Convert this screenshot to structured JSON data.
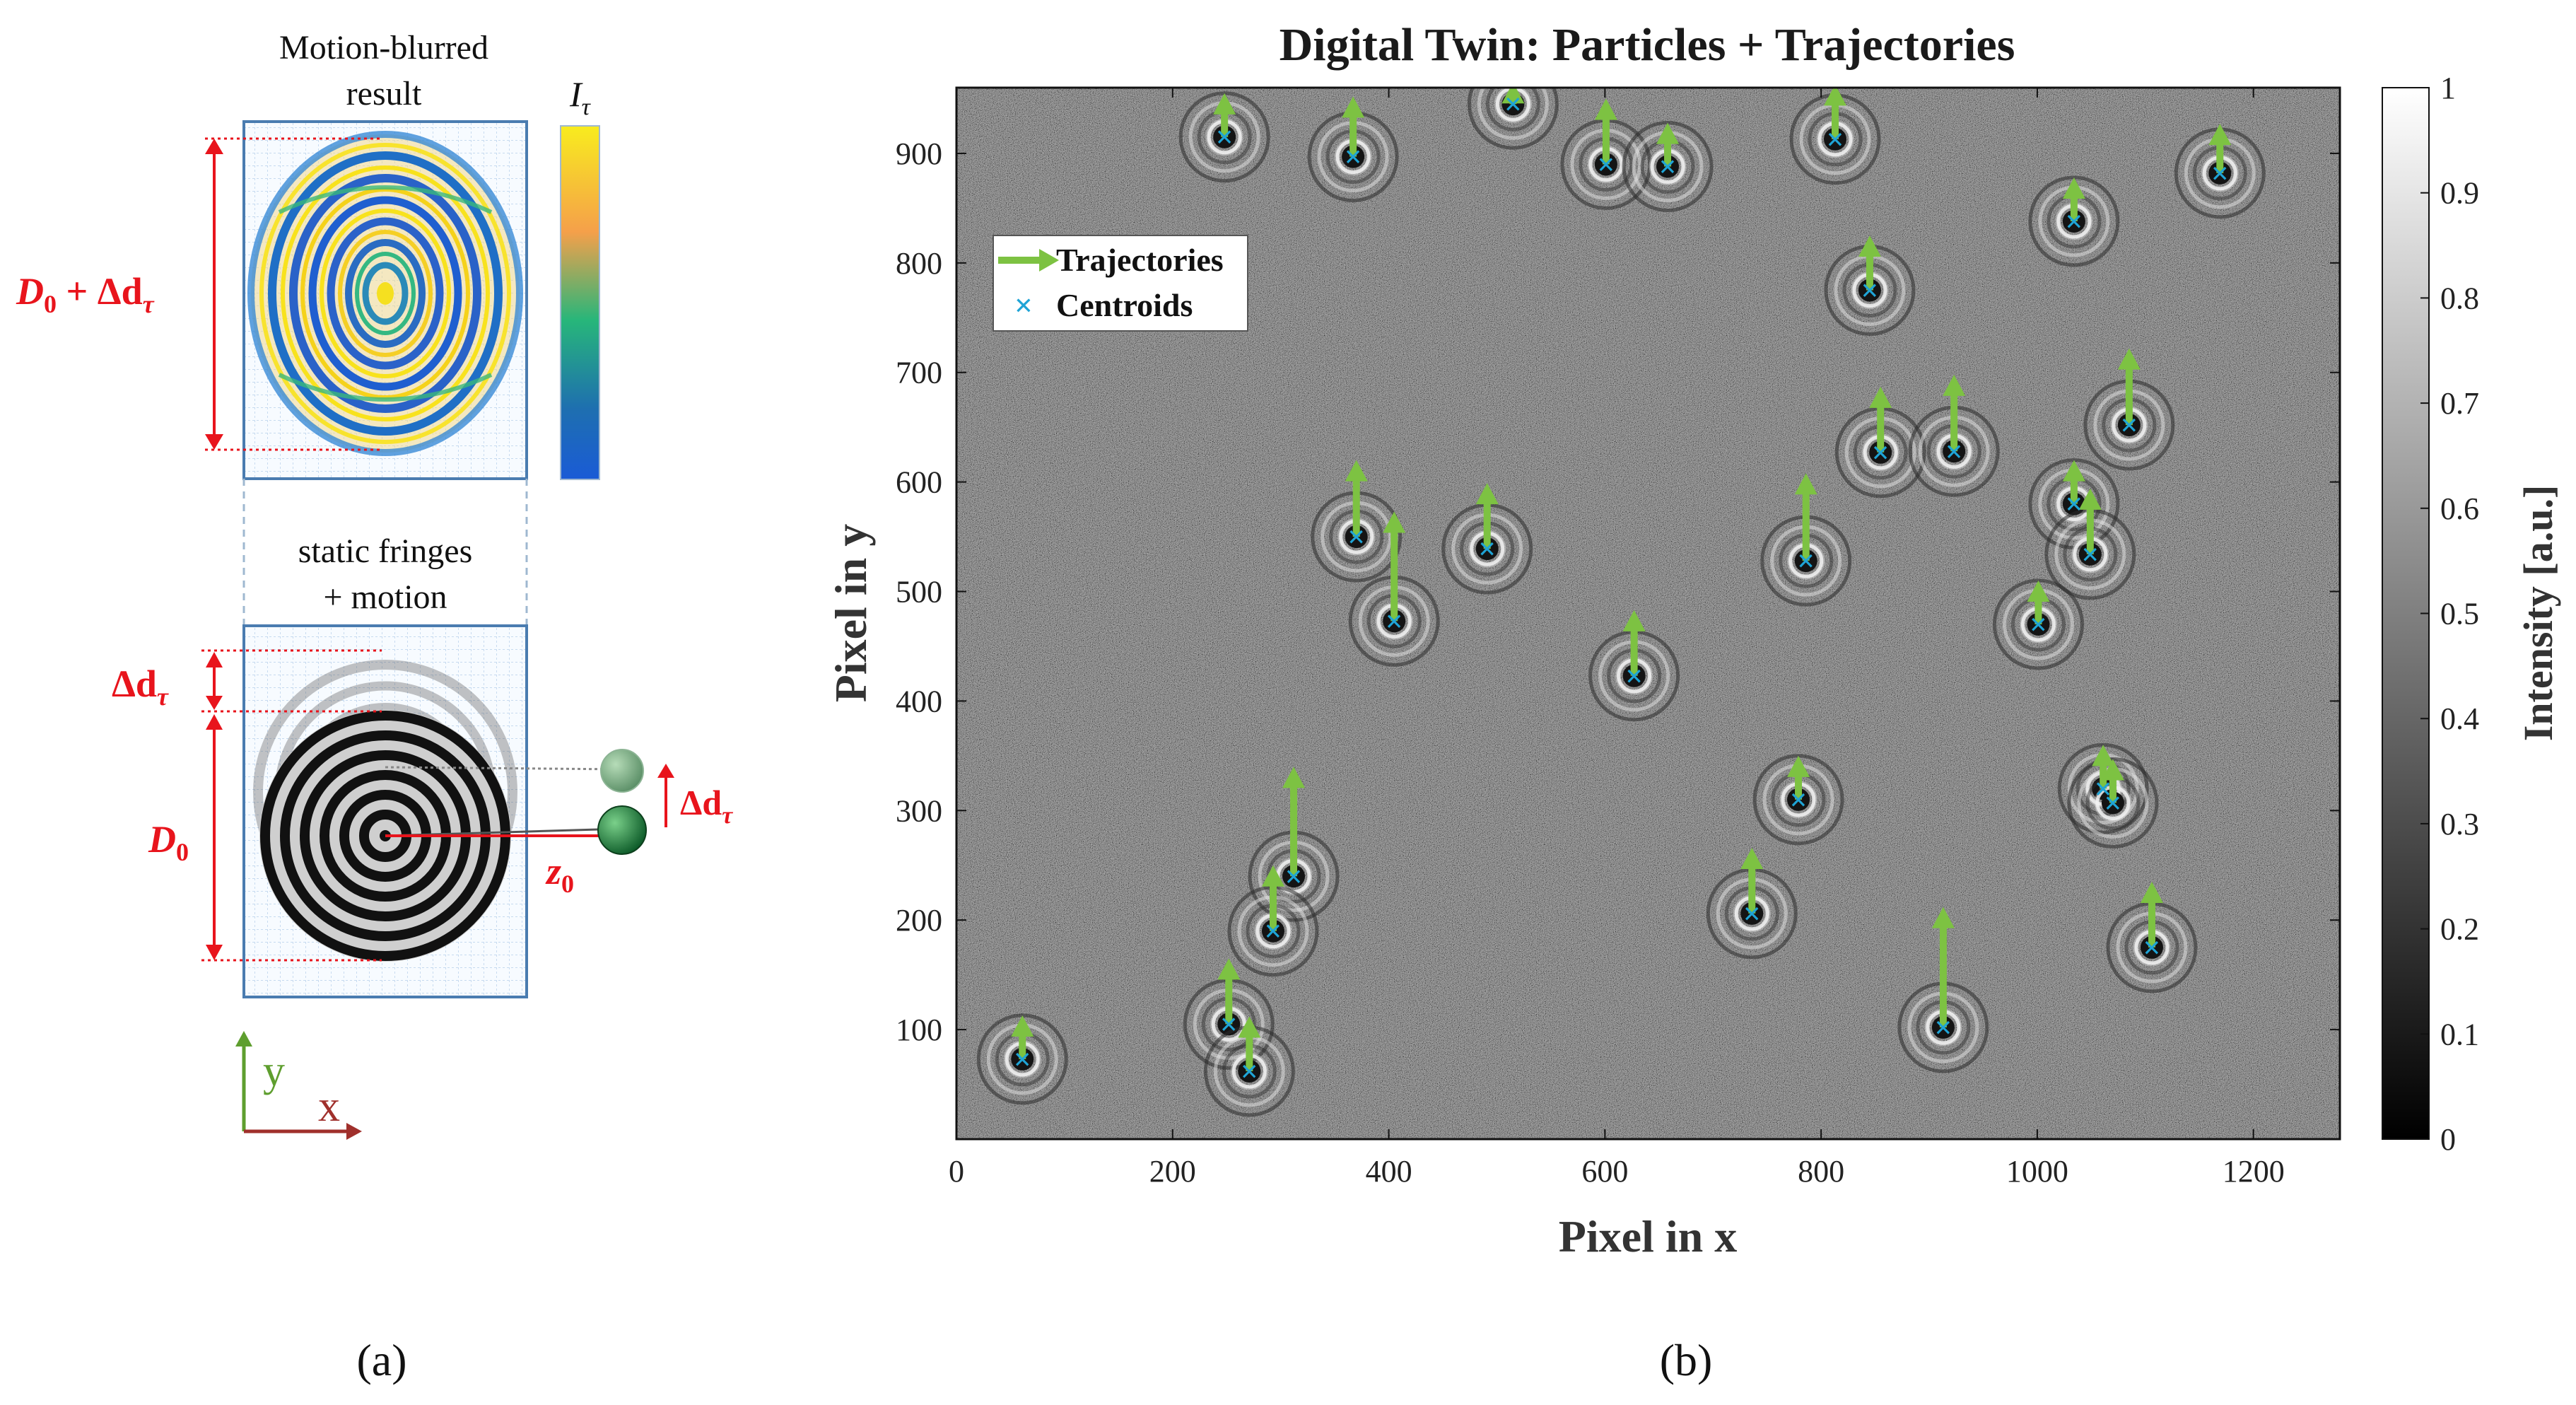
{
  "panel_a": {
    "top_title_line1": "Motion-blurred",
    "top_title_line2": "result",
    "colorbar_label": "I",
    "colorbar_label_sub": "τ",
    "dim_top_main": "D",
    "dim_top_sub": "0",
    "dim_top_rest": " + Δd",
    "dim_top_rest_sub": "τ",
    "bottom_title_line1": "static fringes",
    "bottom_title_line2": "+ motion",
    "dim_delta_main": "Δd",
    "dim_delta_sub": "τ",
    "dim_d0_main": "D",
    "dim_d0_sub": "0",
    "z0_main": "z",
    "z0_sub": "0",
    "motion_main": "Δd",
    "motion_sub": "τ",
    "axis_y": "y",
    "axis_x": "x",
    "caption": "(a)",
    "colors": {
      "dimension": "#e8141c",
      "y_axis": "#5e9e2e",
      "x_axis": "#a0302c",
      "frame": "#4a7cb0"
    }
  },
  "panel_b": {
    "caption": "(b)",
    "colorbar_ticks": [
      "0",
      "0.1",
      "0.2",
      "0.3",
      "0.4",
      "0.5",
      "0.6",
      "0.7",
      "0.8",
      "0.9",
      "1"
    ],
    "colors": {
      "arrow": "#7dc242",
      "centroid": "#1fa4d6",
      "background": "#6e6e6e"
    }
  },
  "chart_data": {
    "type": "scatter",
    "title": "Digital Twin: Particles + Trajectories",
    "xlabel": "Pixel in x",
    "ylabel": "Pixel in y",
    "xlim": [
      0,
      1280
    ],
    "ylim": [
      0,
      960
    ],
    "xticks": [
      0,
      200,
      400,
      600,
      800,
      1000,
      1200
    ],
    "yticks": [
      100,
      200,
      300,
      400,
      500,
      600,
      700,
      800,
      900
    ],
    "legend": {
      "placement": "top-left",
      "entries": [
        "Trajectories",
        "Centroids"
      ]
    },
    "colorbar": {
      "label": "Intensity [a.u.]",
      "range": [
        0,
        1
      ]
    },
    "centroids": [
      {
        "x": 248,
        "y": 915
      },
      {
        "x": 367,
        "y": 897
      },
      {
        "x": 515,
        "y": 945
      },
      {
        "x": 601,
        "y": 890
      },
      {
        "x": 658,
        "y": 888
      },
      {
        "x": 813,
        "y": 913
      },
      {
        "x": 1169,
        "y": 882
      },
      {
        "x": 1034,
        "y": 838
      },
      {
        "x": 845,
        "y": 775
      },
      {
        "x": 855,
        "y": 627
      },
      {
        "x": 923,
        "y": 628
      },
      {
        "x": 1085,
        "y": 652
      },
      {
        "x": 370,
        "y": 550
      },
      {
        "x": 491,
        "y": 539
      },
      {
        "x": 786,
        "y": 528
      },
      {
        "x": 1034,
        "y": 580
      },
      {
        "x": 1049,
        "y": 534
      },
      {
        "x": 1001,
        "y": 470
      },
      {
        "x": 405,
        "y": 473
      },
      {
        "x": 627,
        "y": 423
      },
      {
        "x": 779,
        "y": 310
      },
      {
        "x": 1061,
        "y": 320
      },
      {
        "x": 1070,
        "y": 307
      },
      {
        "x": 312,
        "y": 240
      },
      {
        "x": 293,
        "y": 190
      },
      {
        "x": 736,
        "y": 206
      },
      {
        "x": 1106,
        "y": 175
      },
      {
        "x": 252,
        "y": 105
      },
      {
        "x": 271,
        "y": 62
      },
      {
        "x": 61,
        "y": 73
      },
      {
        "x": 913,
        "y": 102
      }
    ],
    "trajectory_dy": [
      40,
      55,
      20,
      60,
      40,
      50,
      45,
      40,
      50,
      60,
      70,
      70,
      70,
      60,
      80,
      40,
      60,
      40,
      100,
      60,
      40,
      40,
      40,
      100,
      60,
      60,
      60,
      60,
      50,
      40,
      110
    ]
  }
}
